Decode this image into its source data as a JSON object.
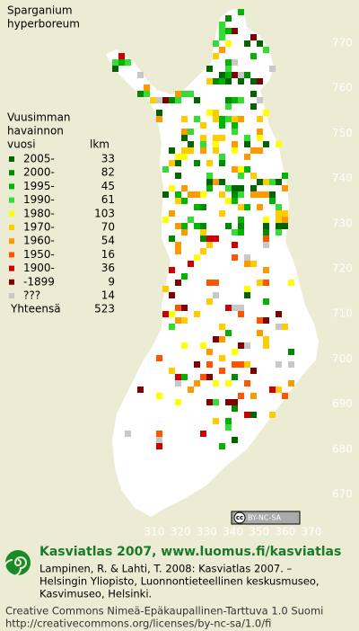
{
  "title": [
    "Sparganium",
    "hyperboreum"
  ],
  "legend": {
    "heading": [
      "Vuusimman",
      "havainnon"
    ],
    "year_header": "vuosi",
    "count_header": "lkm",
    "items": [
      {
        "label": "2005-",
        "count": 33,
        "color": "#006400"
      },
      {
        "label": "2000-",
        "count": 82,
        "color": "#008a00"
      },
      {
        "label": "1995-",
        "count": 45,
        "color": "#00b400"
      },
      {
        "label": "1990-",
        "count": 61,
        "color": "#33dd33"
      },
      {
        "label": "1980-",
        "count": 103,
        "color": "#ffff00"
      },
      {
        "label": "1970-",
        "count": 70,
        "color": "#ffcc00"
      },
      {
        "label": "1960-",
        "count": 54,
        "color": "#ff9900"
      },
      {
        "label": "1950-",
        "count": 16,
        "color": "#ff5500"
      },
      {
        "label": "1900-",
        "count": 36,
        "color": "#cc0000"
      },
      {
        "label": "-1899",
        "count": 9,
        "color": "#800000"
      },
      {
        "label": "???",
        "count": 14,
        "color": "#c8c8c8"
      }
    ],
    "total_label": "Yhteensä",
    "total": 523
  },
  "map": {
    "y_ticks": [
      770,
      760,
      750,
      740,
      730,
      720,
      710,
      700,
      690,
      680,
      670
    ],
    "x_ticks": [
      310,
      320,
      330,
      340,
      350,
      360,
      370
    ],
    "license_badge": {
      "icon": "cc",
      "text": "BY-NC-SA"
    }
  },
  "footer": {
    "brand": "Kasviatlas 2007, www.luomus.fi/kasviatlas",
    "citation": [
      "Lampinen, R. & Lahti, T. 2008: Kasviatlas 2007. –",
      "Helsingin Yliopisto, Luonnontieteellinen keskusmuseo,",
      "Kasvimuseo, Helsinki."
    ],
    "license": [
      "Creative Commons Nimeä-Epäkaupallinen-Tarttuva 1.0 Suomi",
      "http://creativecommons.org/licenses/by-nc-sa/1.0/fi"
    ]
  }
}
